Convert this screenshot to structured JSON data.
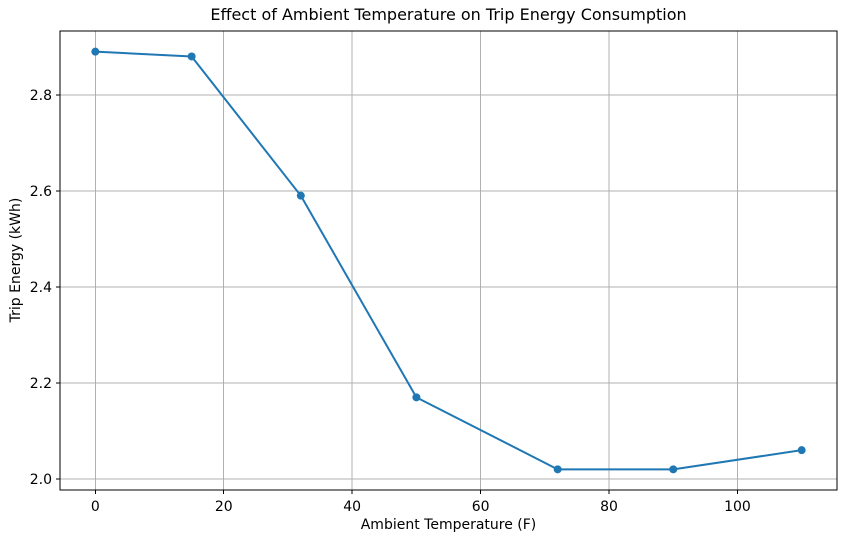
{
  "chart_data": {
    "type": "line",
    "title": "Effect of Ambient Temperature on Trip Energy Consumption",
    "xlabel": "Ambient Temperature (F)",
    "ylabel": "Trip Energy (kWh)",
    "x": [
      0,
      15,
      32,
      50,
      72,
      90,
      110
    ],
    "y": [
      2.89,
      2.88,
      2.59,
      2.17,
      2.02,
      2.02,
      2.06
    ],
    "xlim": [
      -5.5,
      115.5
    ],
    "ylim": [
      1.977,
      2.933
    ],
    "xticks": [
      0,
      20,
      40,
      60,
      80,
      100
    ],
    "xtick_labels": [
      "0",
      "20",
      "40",
      "60",
      "80",
      "100"
    ],
    "yticks": [
      2.0,
      2.2,
      2.4,
      2.6,
      2.8
    ],
    "ytick_labels": [
      "2.0",
      "2.2",
      "2.4",
      "2.6",
      "2.8"
    ],
    "grid": true,
    "legend": false,
    "marker": "o",
    "line_color": "#1f77b4",
    "marker_color": "#1f77b4",
    "grid_color": "#b0b0b0",
    "spine_color": "#000000",
    "background_color": "#ffffff"
  }
}
